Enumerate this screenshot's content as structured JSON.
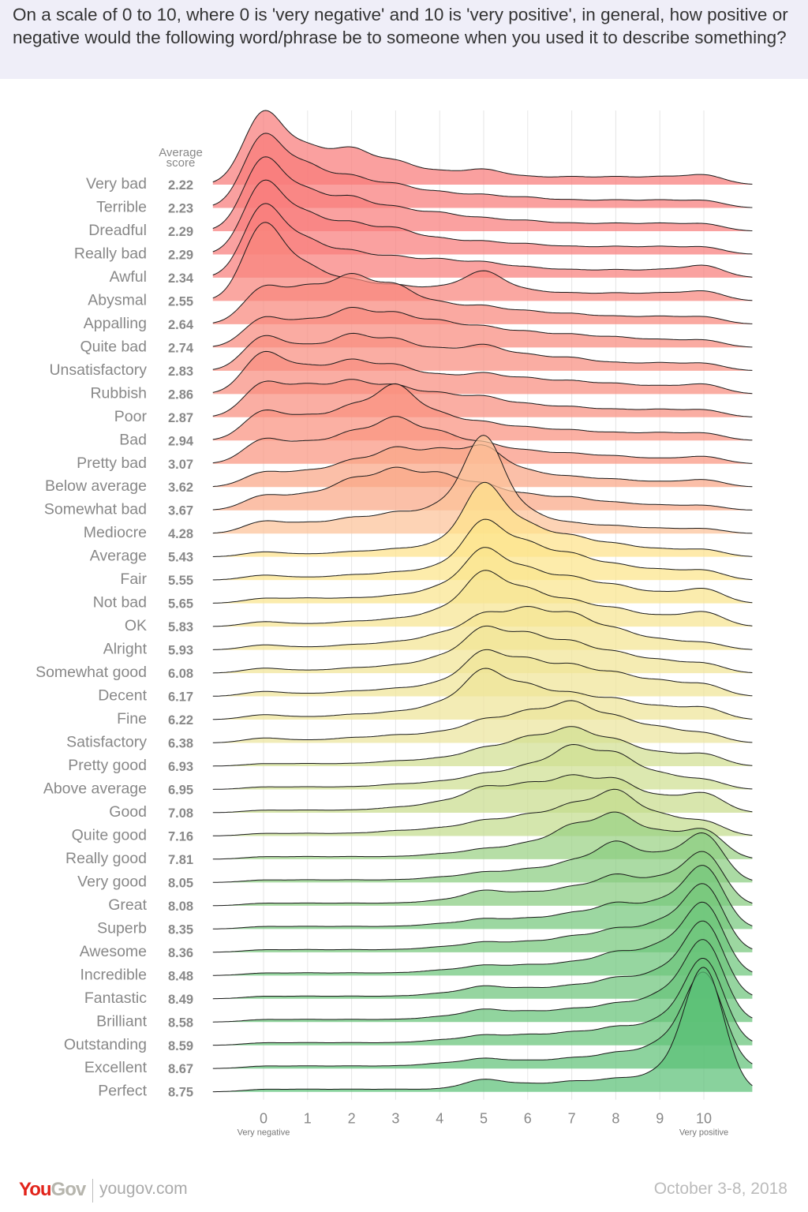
{
  "header": {
    "question": "On a scale of 0 to 10, where 0 is 'very negative' and 10 is 'very positive', in general, how positive or negative would the following word/phrase be to someone when you used it to describe something?"
  },
  "footer": {
    "logo": "YouGov",
    "site": "yougov.com",
    "date": "October 3-8, 2018"
  },
  "chart_data": {
    "type": "ridgeline",
    "score_column_header": "Average score",
    "x_ticks": [
      "0",
      "1",
      "2",
      "3",
      "4",
      "5",
      "6",
      "7",
      "8",
      "9",
      "10"
    ],
    "x_end_labels": {
      "left": "Very negative",
      "right": "Very positive"
    },
    "xlim": [
      -1.15,
      11.1
    ],
    "grid": "vertical",
    "value_note_unit": "share of respondents at each score (estimated)",
    "color_scale": [
      {
        "score": 2.2,
        "color": "#f87a7a"
      },
      {
        "score": 3.6,
        "color": "#f9a585"
      },
      {
        "score": 4.3,
        "color": "#fcc399"
      },
      {
        "score": 5.5,
        "color": "#fde48a"
      },
      {
        "score": 6.4,
        "color": "#ebe59c"
      },
      {
        "score": 7.1,
        "color": "#c8dd8e"
      },
      {
        "score": 8.75,
        "color": "#5cc177"
      }
    ],
    "rows": [
      {
        "label": "Very bad",
        "score": "2.22",
        "dist": [
          0.3,
          0.14,
          0.14,
          0.09,
          0.05,
          0.06,
          0.03,
          0.03,
          0.03,
          0.03,
          0.04
        ]
      },
      {
        "label": "Terrible",
        "score": "2.23",
        "dist": [
          0.3,
          0.16,
          0.12,
          0.09,
          0.06,
          0.05,
          0.04,
          0.03,
          0.03,
          0.03,
          0.03
        ]
      },
      {
        "label": "Dreadful",
        "score": "2.29",
        "dist": [
          0.3,
          0.15,
          0.13,
          0.09,
          0.07,
          0.05,
          0.04,
          0.03,
          0.03,
          0.03,
          0.03
        ]
      },
      {
        "label": "Really bad",
        "score": "2.29",
        "dist": [
          0.3,
          0.15,
          0.12,
          0.1,
          0.06,
          0.05,
          0.04,
          0.03,
          0.03,
          0.03,
          0.03
        ]
      },
      {
        "label": "Awful",
        "score": "2.34",
        "dist": [
          0.3,
          0.14,
          0.1,
          0.08,
          0.07,
          0.06,
          0.04,
          0.03,
          0.03,
          0.03,
          0.05
        ]
      },
      {
        "label": "Abysmal",
        "score": "2.55",
        "dist": [
          0.32,
          0.13,
          0.08,
          0.06,
          0.05,
          0.12,
          0.04,
          0.03,
          0.03,
          0.03,
          0.04
        ]
      },
      {
        "label": "Appalling",
        "score": "2.64",
        "dist": [
          0.15,
          0.14,
          0.19,
          0.15,
          0.08,
          0.07,
          0.05,
          0.04,
          0.03,
          0.03,
          0.03
        ]
      },
      {
        "label": "Quite bad",
        "score": "2.74",
        "dist": [
          0.12,
          0.1,
          0.15,
          0.13,
          0.1,
          0.08,
          0.06,
          0.05,
          0.04,
          0.03,
          0.03
        ]
      },
      {
        "label": "Unsatisfactory",
        "score": "2.83",
        "dist": [
          0.14,
          0.09,
          0.14,
          0.12,
          0.08,
          0.1,
          0.06,
          0.05,
          0.03,
          0.03,
          0.03
        ]
      },
      {
        "label": "Rubbish",
        "score": "2.86",
        "dist": [
          0.17,
          0.1,
          0.13,
          0.11,
          0.07,
          0.08,
          0.06,
          0.05,
          0.04,
          0.03,
          0.04
        ]
      },
      {
        "label": "Poor",
        "score": "2.87",
        "dist": [
          0.14,
          0.12,
          0.14,
          0.12,
          0.09,
          0.08,
          0.05,
          0.04,
          0.03,
          0.03,
          0.03
        ]
      },
      {
        "label": "Bad",
        "score": "2.94",
        "dist": [
          0.12,
          0.09,
          0.13,
          0.22,
          0.1,
          0.07,
          0.05,
          0.04,
          0.03,
          0.03,
          0.03
        ]
      },
      {
        "label": "Pretty bad",
        "score": "3.07",
        "dist": [
          0.1,
          0.08,
          0.12,
          0.18,
          0.12,
          0.08,
          0.05,
          0.04,
          0.03,
          0.02,
          0.03
        ]
      },
      {
        "label": "Below average",
        "score": "3.62",
        "dist": [
          0.06,
          0.06,
          0.1,
          0.15,
          0.14,
          0.16,
          0.06,
          0.04,
          0.03,
          0.02,
          0.03
        ]
      },
      {
        "label": "Somewhat bad",
        "score": "3.67",
        "dist": [
          0.06,
          0.06,
          0.12,
          0.16,
          0.14,
          0.1,
          0.06,
          0.05,
          0.03,
          0.02,
          0.02
        ]
      },
      {
        "label": "Mediocre",
        "score": "4.28",
        "dist": [
          0.05,
          0.04,
          0.06,
          0.08,
          0.1,
          0.4,
          0.08,
          0.04,
          0.03,
          0.02,
          0.02
        ]
      },
      {
        "label": "Average",
        "score": "5.43",
        "dist": [
          0.02,
          0.01,
          0.02,
          0.03,
          0.05,
          0.3,
          0.12,
          0.08,
          0.05,
          0.03,
          0.03
        ]
      },
      {
        "label": "Fair",
        "score": "5.55",
        "dist": [
          0.02,
          0.01,
          0.02,
          0.03,
          0.05,
          0.24,
          0.14,
          0.1,
          0.06,
          0.04,
          0.04
        ]
      },
      {
        "label": "Not bad",
        "score": "5.65",
        "dist": [
          0.02,
          0.02,
          0.02,
          0.03,
          0.06,
          0.22,
          0.13,
          0.1,
          0.07,
          0.04,
          0.06
        ]
      },
      {
        "label": "OK",
        "score": "5.83",
        "dist": [
          0.02,
          0.01,
          0.02,
          0.03,
          0.06,
          0.22,
          0.14,
          0.1,
          0.07,
          0.04,
          0.06
        ]
      },
      {
        "label": "Alright",
        "score": "5.93",
        "dist": [
          0.02,
          0.01,
          0.02,
          0.03,
          0.06,
          0.14,
          0.16,
          0.14,
          0.08,
          0.04,
          0.03
        ]
      },
      {
        "label": "Somewhat good",
        "score": "6.08",
        "dist": [
          0.02,
          0.01,
          0.02,
          0.03,
          0.06,
          0.18,
          0.15,
          0.12,
          0.08,
          0.05,
          0.04
        ]
      },
      {
        "label": "Decent",
        "score": "6.17",
        "dist": [
          0.02,
          0.01,
          0.02,
          0.03,
          0.05,
          0.18,
          0.14,
          0.12,
          0.09,
          0.06,
          0.05
        ]
      },
      {
        "label": "Fine",
        "score": "6.22",
        "dist": [
          0.02,
          0.01,
          0.02,
          0.03,
          0.06,
          0.2,
          0.13,
          0.1,
          0.08,
          0.05,
          0.05
        ]
      },
      {
        "label": "Satisfactory",
        "score": "6.38",
        "dist": [
          0.02,
          0.01,
          0.02,
          0.03,
          0.04,
          0.09,
          0.12,
          0.16,
          0.1,
          0.06,
          0.04
        ]
      },
      {
        "label": "Pretty good",
        "score": "6.93",
        "dist": [
          0.01,
          0.01,
          0.01,
          0.02,
          0.03,
          0.07,
          0.11,
          0.15,
          0.1,
          0.05,
          0.05
        ]
      },
      {
        "label": "Above average",
        "score": "6.95",
        "dist": [
          0.01,
          0.01,
          0.01,
          0.02,
          0.03,
          0.06,
          0.09,
          0.17,
          0.14,
          0.06,
          0.04
        ]
      },
      {
        "label": "Good",
        "score": "7.08",
        "dist": [
          0.01,
          0.01,
          0.01,
          0.02,
          0.04,
          0.1,
          0.11,
          0.14,
          0.13,
          0.06,
          0.08
        ]
      },
      {
        "label": "Quite good",
        "score": "7.16",
        "dist": [
          0.01,
          0.01,
          0.01,
          0.02,
          0.03,
          0.06,
          0.08,
          0.12,
          0.18,
          0.08,
          0.06
        ]
      },
      {
        "label": "Really good",
        "score": "7.81",
        "dist": [
          0.01,
          0.01,
          0.01,
          0.01,
          0.02,
          0.04,
          0.06,
          0.13,
          0.18,
          0.1,
          0.12
        ]
      },
      {
        "label": "Very good",
        "score": "8.05",
        "dist": [
          0.01,
          0.01,
          0.01,
          0.01,
          0.02,
          0.04,
          0.05,
          0.08,
          0.16,
          0.1,
          0.2
        ]
      },
      {
        "label": "Great",
        "score": "8.08",
        "dist": [
          0.01,
          0.01,
          0.01,
          0.01,
          0.02,
          0.06,
          0.05,
          0.07,
          0.12,
          0.1,
          0.22
        ]
      },
      {
        "label": "Superb",
        "score": "8.35",
        "dist": [
          0.01,
          0.01,
          0.01,
          0.01,
          0.02,
          0.04,
          0.04,
          0.06,
          0.1,
          0.1,
          0.26
        ]
      },
      {
        "label": "Awesome",
        "score": "8.36",
        "dist": [
          0.01,
          0.01,
          0.01,
          0.01,
          0.02,
          0.04,
          0.04,
          0.06,
          0.09,
          0.11,
          0.28
        ]
      },
      {
        "label": "Incredible",
        "score": "8.48",
        "dist": [
          0.01,
          0.01,
          0.01,
          0.01,
          0.02,
          0.04,
          0.04,
          0.05,
          0.09,
          0.11,
          0.3
        ]
      },
      {
        "label": "Fantastic",
        "score": "8.49",
        "dist": [
          0.01,
          0.01,
          0.01,
          0.01,
          0.02,
          0.05,
          0.04,
          0.05,
          0.08,
          0.1,
          0.32
        ]
      },
      {
        "label": "Brilliant",
        "score": "8.58",
        "dist": [
          0.01,
          0.01,
          0.01,
          0.01,
          0.02,
          0.05,
          0.04,
          0.05,
          0.07,
          0.1,
          0.34
        ]
      },
      {
        "label": "Outstanding",
        "score": "8.59",
        "dist": [
          0.01,
          0.01,
          0.01,
          0.01,
          0.02,
          0.04,
          0.04,
          0.05,
          0.07,
          0.09,
          0.36
        ]
      },
      {
        "label": "Excellent",
        "score": "8.67",
        "dist": [
          0.01,
          0.01,
          0.01,
          0.01,
          0.02,
          0.04,
          0.03,
          0.04,
          0.06,
          0.09,
          0.4
        ]
      },
      {
        "label": "Perfect",
        "score": "8.75",
        "dist": [
          0.01,
          0.01,
          0.01,
          0.01,
          0.01,
          0.05,
          0.03,
          0.04,
          0.05,
          0.07,
          0.52
        ]
      }
    ]
  }
}
